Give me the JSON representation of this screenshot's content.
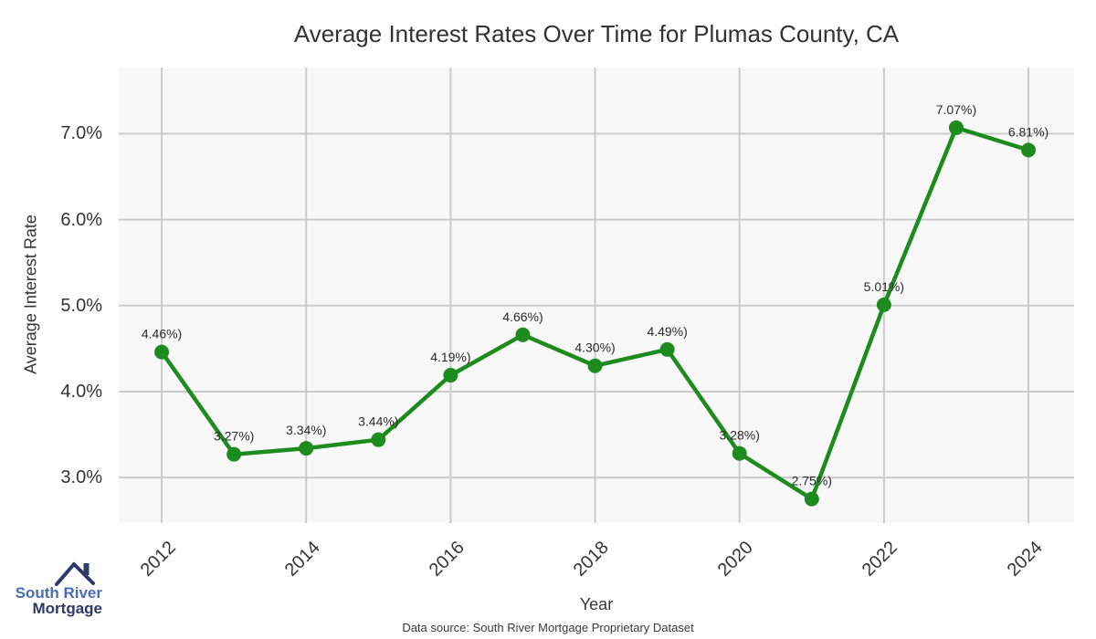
{
  "footer": {
    "text": "Data source: South River Mortgage Proprietary Dataset"
  },
  "logo": {
    "line1": "South River",
    "line2": "Mortgage",
    "line1_color": "#4a6cb3",
    "line2_color": "#2d3a6b",
    "roof_color": "#2d3a6b"
  },
  "chart_data": {
    "type": "line",
    "title": "Average Interest Rates Over Time for Plumas County, CA",
    "xlabel": "Year",
    "ylabel": "Average Interest Rate",
    "x": [
      2012,
      2013,
      2014,
      2015,
      2016,
      2017,
      2018,
      2019,
      2020,
      2021,
      2022,
      2023,
      2024
    ],
    "series": [
      {
        "name": "Average Interest Rate",
        "values": [
          4.46,
          3.27,
          3.34,
          3.44,
          4.19,
          4.66,
          4.3,
          4.49,
          3.28,
          2.75,
          5.01,
          7.07,
          6.81
        ]
      }
    ],
    "point_labels": [
      "4.46%)",
      "3.27%)",
      "3.34%)",
      "3.44%)",
      "4.19%)",
      "4.66%)",
      "4.30%)",
      "4.49%)",
      "3.28%)",
      "2.75%)",
      "5.01%)",
      "7.07%)",
      "6.81%)"
    ],
    "x_ticks": [
      2012,
      2014,
      2016,
      2018,
      2020,
      2022,
      2024
    ],
    "x_tick_labels": [
      "2012",
      "2014",
      "2016",
      "2018",
      "2020",
      "2022",
      "2024"
    ],
    "y_ticks": [
      3,
      4,
      5,
      6,
      7
    ],
    "y_tick_labels": [
      "3.0%",
      "4.0%",
      "5.0%",
      "6.0%",
      "7.0%"
    ],
    "xlim": [
      2011.405,
      2024.632
    ],
    "ylim": [
      2.47,
      7.77
    ],
    "grid": true,
    "legend": "none",
    "line_color": "#1e8b1e",
    "marker_color": "#1e8b1e",
    "grid_color": "#cbcbcb",
    "plot_bg": "#f8f8f8",
    "label_color": "#2b2b2b"
  }
}
